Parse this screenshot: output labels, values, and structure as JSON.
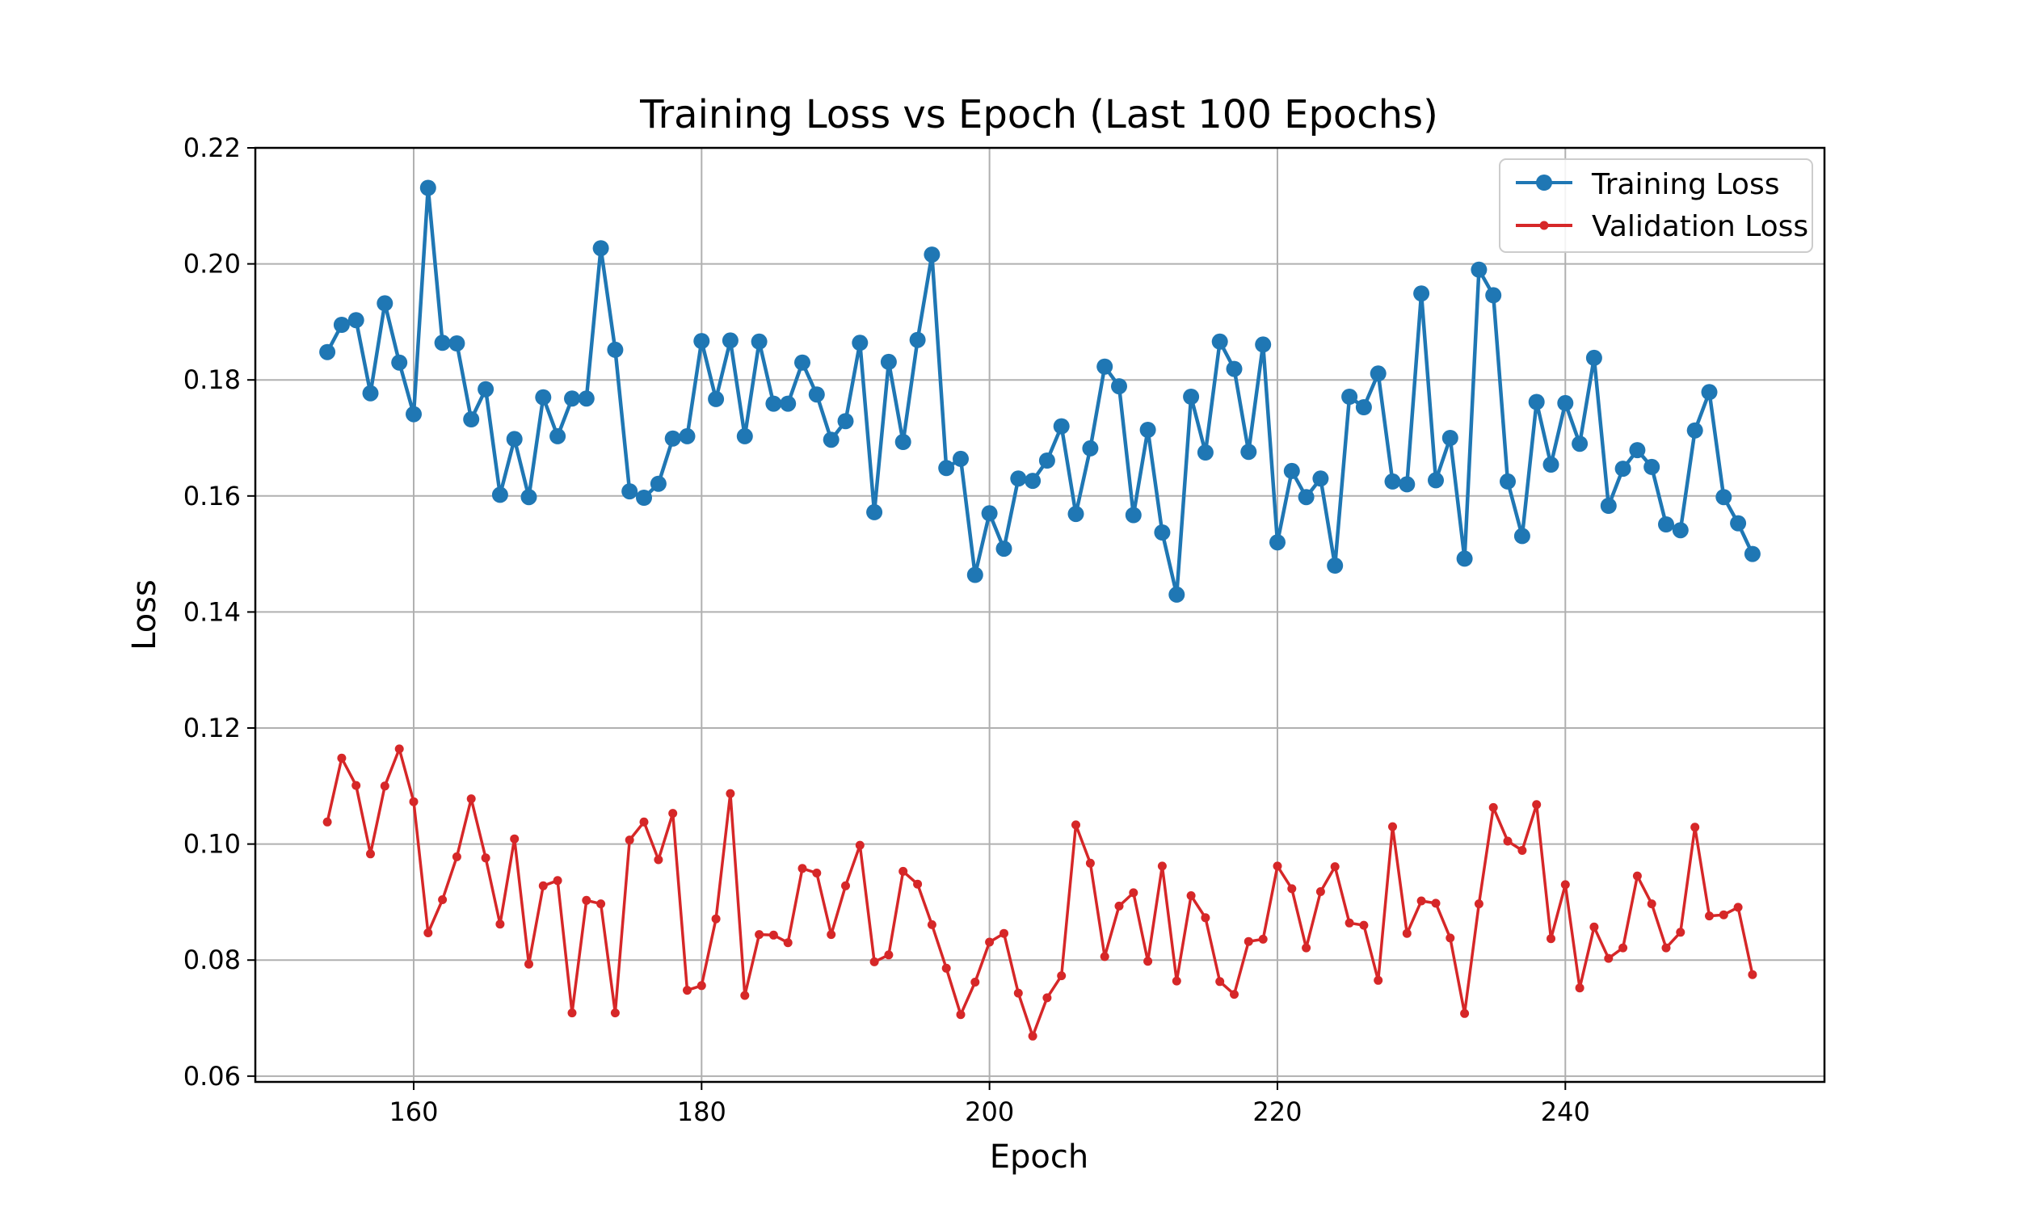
{
  "chart_data": {
    "type": "line",
    "title": "Training Loss vs Epoch (Last 100 Epochs)",
    "xlabel": "Epoch",
    "ylabel": "Loss",
    "xlim": [
      149,
      258
    ],
    "ylim": [
      0.059,
      0.22
    ],
    "xticks": [
      160,
      180,
      200,
      220,
      240
    ],
    "yticks": [
      0.06,
      0.08,
      0.1,
      0.12,
      0.14,
      0.16,
      0.18,
      0.2,
      0.22
    ],
    "ytick_labels": [
      "0.06",
      "0.08",
      "0.10",
      "0.12",
      "0.14",
      "0.16",
      "0.18",
      "0.20",
      "0.22"
    ],
    "grid": true,
    "legend_position": "top-right",
    "x": [
      154,
      155,
      156,
      157,
      158,
      159,
      160,
      161,
      162,
      163,
      164,
      165,
      166,
      167,
      168,
      169,
      170,
      171,
      172,
      173,
      174,
      175,
      176,
      177,
      178,
      179,
      180,
      181,
      182,
      183,
      184,
      185,
      186,
      187,
      188,
      189,
      190,
      191,
      192,
      193,
      194,
      195,
      196,
      197,
      198,
      199,
      200,
      201,
      202,
      203,
      204,
      205,
      206,
      207,
      208,
      209,
      210,
      211,
      212,
      213,
      214,
      215,
      216,
      217,
      218,
      219,
      220,
      221,
      222,
      223,
      224,
      225,
      226,
      227,
      228,
      229,
      230,
      231,
      232,
      233,
      234,
      235,
      236,
      237,
      238,
      239,
      240,
      241,
      242,
      243,
      244,
      245,
      246,
      247,
      248,
      249,
      250,
      251,
      252,
      253
    ],
    "series": [
      {
        "name": "Training Loss",
        "color": "#1f77b4",
        "marker": "large-circle",
        "values": [
          0.1848,
          0.1895,
          0.1903,
          0.1777,
          0.1932,
          0.183,
          0.1741,
          0.2131,
          0.1864,
          0.1863,
          0.1732,
          0.1784,
          0.1602,
          0.1698,
          0.1598,
          0.177,
          0.1703,
          0.1768,
          0.1768,
          0.2027,
          0.1852,
          0.1608,
          0.1597,
          0.1621,
          0.1699,
          0.1703,
          0.1867,
          0.1767,
          0.1868,
          0.1703,
          0.1866,
          0.1759,
          0.1759,
          0.183,
          0.1775,
          0.1697,
          0.1729,
          0.1864,
          0.1572,
          0.1831,
          0.1693,
          0.1869,
          0.2016,
          0.1648,
          0.1664,
          0.1464,
          0.157,
          0.1509,
          0.163,
          0.1626,
          0.1661,
          0.172,
          0.1569,
          0.1682,
          0.1823,
          0.1789,
          0.1567,
          0.1714,
          0.1537,
          0.143,
          0.1771,
          0.1675,
          0.1866,
          0.1819,
          0.1676,
          0.1861,
          0.152,
          0.1643,
          0.1598,
          0.163,
          0.148,
          0.1771,
          0.1753,
          0.1811,
          0.1625,
          0.162,
          0.1949,
          0.1627,
          0.17,
          0.1492,
          0.199,
          0.1946,
          0.1625,
          0.1531,
          0.1762,
          0.1654,
          0.176,
          0.169,
          0.1838,
          0.1583,
          0.1647,
          0.1679,
          0.165,
          0.1551,
          0.1541,
          0.1713,
          0.1779,
          0.1598,
          0.1553,
          0.15
        ]
      },
      {
        "name": "Validation Loss",
        "color": "#d62728",
        "marker": "small-dot",
        "values": [
          0.1038,
          0.1148,
          0.1101,
          0.0983,
          0.11,
          0.1164,
          0.1073,
          0.0847,
          0.0904,
          0.0978,
          0.1078,
          0.0976,
          0.0862,
          0.1009,
          0.0793,
          0.0928,
          0.0937,
          0.0709,
          0.0903,
          0.0897,
          0.0709,
          0.1007,
          0.1038,
          0.0973,
          0.1053,
          0.0748,
          0.0756,
          0.0871,
          0.1087,
          0.0739,
          0.0844,
          0.0843,
          0.083,
          0.0958,
          0.095,
          0.0844,
          0.0928,
          0.0998,
          0.0797,
          0.0809,
          0.0953,
          0.0931,
          0.0861,
          0.0786,
          0.0706,
          0.0762,
          0.0831,
          0.0846,
          0.0743,
          0.0669,
          0.0735,
          0.0773,
          0.1033,
          0.0967,
          0.0806,
          0.0893,
          0.0916,
          0.0798,
          0.0962,
          0.0764,
          0.0911,
          0.0873,
          0.0763,
          0.0741,
          0.0832,
          0.0836,
          0.0962,
          0.0923,
          0.0821,
          0.0918,
          0.0961,
          0.0864,
          0.086,
          0.0765,
          0.103,
          0.0846,
          0.0902,
          0.0898,
          0.0838,
          0.0708,
          0.0897,
          0.1063,
          0.1005,
          0.0989,
          0.1068,
          0.0837,
          0.093,
          0.0752,
          0.0857,
          0.0803,
          0.0821,
          0.0945,
          0.0897,
          0.0821,
          0.0848,
          0.1029,
          0.0876,
          0.0878,
          0.0891,
          0.0775
        ]
      }
    ]
  }
}
